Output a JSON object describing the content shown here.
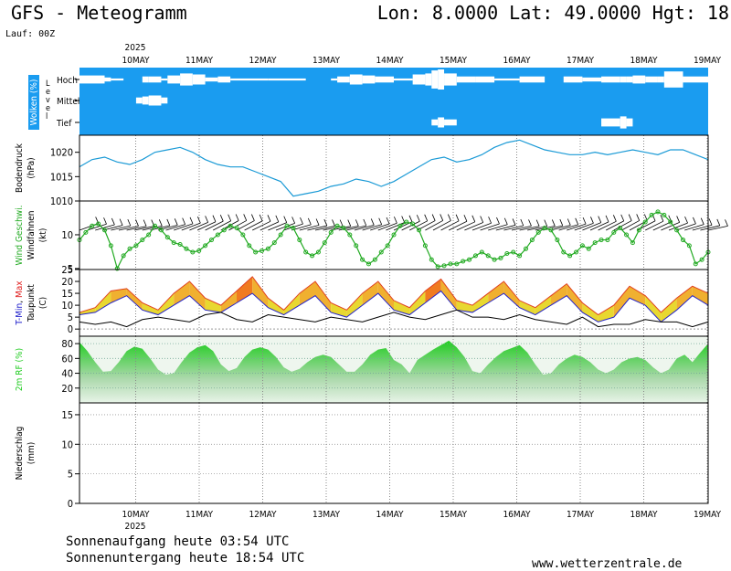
{
  "header": {
    "title": "GFS - Meteogramm",
    "coords": "Lon: 8.0000  Lat: 49.0000  Hgt: 18",
    "lauf": "Lauf: 00Z"
  },
  "footer": {
    "sunrise": "Sonnenaufgang heute 03:54 UTC",
    "sunset": "Sonnenuntergang heute 18:54 UTC",
    "site": "www.wetterzentrale.de"
  },
  "colors": {
    "cloud_bg": "#1a9cf0",
    "pressure": "#1a9ad6",
    "wind": "#22aa22",
    "tmin": "#2222cc",
    "tmax": "#e02020",
    "rh": "#22cc22"
  },
  "chart_data": [
    {
      "id": "x-axis",
      "type": "table",
      "year": "2025",
      "categories": [
        "10MAY",
        "11MAY",
        "12MAY",
        "13MAY",
        "14MAY",
        "15MAY",
        "16MAY",
        "17MAY",
        "18MAY",
        "19MAY"
      ]
    },
    {
      "id": "clouds",
      "type": "heatmap",
      "ylabel": "Wolken (%)",
      "level_axis": "L e v e l",
      "levels": [
        "Hoch",
        "Mittel",
        "Tief"
      ],
      "t": [
        0,
        0.4,
        0.5,
        0.7,
        0.9,
        1.0,
        1.1,
        1.3,
        1.4,
        1.6,
        1.8,
        2.0,
        2.2,
        2.4,
        3.0,
        3.6,
        4.0,
        4.1,
        4.3,
        4.5,
        4.7,
        5.0,
        5.3,
        5.5,
        5.6,
        5.7,
        5.8,
        6.0,
        6.3,
        6.6,
        7.0,
        7.4,
        7.7,
        8.0,
        8.3,
        8.6,
        8.7,
        8.8,
        9.0,
        9.2,
        9.3,
        9.6,
        10.0
      ],
      "hoch": [
        0.4,
        0.2,
        0.1,
        0.0,
        0.0,
        0.3,
        0.3,
        0.1,
        0.4,
        0.6,
        0.5,
        0.2,
        0.3,
        0.1,
        0.1,
        0.0,
        0.1,
        0.3,
        0.5,
        0.4,
        0.3,
        0.1,
        0.5,
        0.6,
        0.9,
        1.0,
        0.6,
        0.3,
        0.3,
        0.1,
        0.3,
        0.0,
        0.3,
        0.2,
        0.3,
        0.3,
        0.3,
        0.4,
        0.3,
        0.3,
        0.8,
        0.3,
        0.1
      ],
      "mittel": [
        0,
        0,
        0,
        0,
        0.3,
        0.4,
        0.5,
        0.3,
        0,
        0,
        0,
        0,
        0,
        0,
        0,
        0,
        0,
        0,
        0,
        0,
        0,
        0,
        0,
        0,
        0,
        0,
        0,
        0,
        0,
        0,
        0,
        0,
        0,
        0,
        0,
        0,
        0,
        0,
        0,
        0,
        0,
        0,
        0
      ],
      "tief": [
        0,
        0,
        0,
        0,
        0,
        0,
        0,
        0,
        0,
        0,
        0,
        0,
        0,
        0,
        0,
        0,
        0,
        0,
        0,
        0,
        0,
        0,
        0,
        0,
        0.3,
        0.5,
        0.3,
        0,
        0,
        0,
        0,
        0,
        0,
        0,
        0.4,
        0.6,
        0.4,
        0,
        0,
        0,
        0,
        0,
        0
      ]
    },
    {
      "id": "pressure",
      "type": "line",
      "ylabel": "Bodendruck",
      "unit": "(hPa)",
      "ylim": [
        1010,
        1023.5
      ],
      "yticks": [
        1010,
        1015,
        1020
      ],
      "x": [
        0,
        0.2,
        0.4,
        0.6,
        0.8,
        1.0,
        1.2,
        1.4,
        1.6,
        1.8,
        2.0,
        2.2,
        2.4,
        2.6,
        2.8,
        3.0,
        3.2,
        3.4,
        3.6,
        3.8,
        4.0,
        4.2,
        4.4,
        4.6,
        4.8,
        5.0,
        5.2,
        5.4,
        5.6,
        5.8,
        6.0,
        6.2,
        6.4,
        6.6,
        6.8,
        7.0,
        7.2,
        7.4,
        7.6,
        7.8,
        8.0,
        8.2,
        8.4,
        8.6,
        8.8,
        9.0,
        9.2,
        9.4,
        9.6,
        9.8,
        10.0
      ],
      "values": [
        1017,
        1018.5,
        1019,
        1018,
        1017.5,
        1018.5,
        1020,
        1020.5,
        1021,
        1020,
        1018.5,
        1017.5,
        1017,
        1017,
        1016,
        1015,
        1014,
        1011,
        1011.5,
        1012,
        1013,
        1013.5,
        1014.5,
        1014,
        1013,
        1014,
        1015.5,
        1017,
        1018.5,
        1019,
        1018,
        1018.5,
        1019.5,
        1021,
        1022,
        1022.5,
        1021.5,
        1020.5,
        1020,
        1019.5,
        1019.5,
        1020,
        1019.5,
        1020,
        1020.5,
        1020,
        1019.5,
        1020.5,
        1020.5,
        1019.5,
        1018.5
      ]
    },
    {
      "id": "wind",
      "type": "line",
      "ylabel": "Wind Geschwi.",
      "barbs_label": "Windfahnen",
      "unit": "(kt)",
      "log": true,
      "ylim": [
        4.9,
        20
      ],
      "yticks": [
        5,
        10
      ],
      "x": [
        0,
        0.1,
        0.2,
        0.3,
        0.4,
        0.5,
        0.6,
        0.7,
        0.8,
        0.9,
        1.0,
        1.1,
        1.2,
        1.3,
        1.4,
        1.5,
        1.6,
        1.7,
        1.8,
        1.9,
        2.0,
        2.1,
        2.2,
        2.3,
        2.4,
        2.5,
        2.6,
        2.7,
        2.8,
        2.9,
        3.0,
        3.1,
        3.2,
        3.3,
        3.4,
        3.5,
        3.6,
        3.7,
        3.8,
        3.9,
        4.0,
        4.1,
        4.2,
        4.3,
        4.4,
        4.5,
        4.6,
        4.7,
        4.8,
        4.9,
        5.0,
        5.1,
        5.2,
        5.3,
        5.4,
        5.5,
        5.6,
        5.7,
        5.8,
        5.9,
        6.0,
        6.1,
        6.2,
        6.3,
        6.4,
        6.5,
        6.6,
        6.7,
        6.8,
        6.9,
        7.0,
        7.1,
        7.2,
        7.3,
        7.4,
        7.5,
        7.6,
        7.7,
        7.8,
        7.9,
        8.0,
        8.1,
        8.2,
        8.3,
        8.4,
        8.5,
        8.6,
        8.7,
        8.8,
        8.9,
        9.0,
        9.1,
        9.2,
        9.3,
        9.4,
        9.5,
        9.6,
        9.7,
        9.8,
        9.9,
        10.0
      ],
      "values": [
        9,
        10.5,
        12,
        12.5,
        11,
        8,
        5,
        6.5,
        7.5,
        8,
        9,
        10,
        12,
        11,
        9.5,
        8.5,
        8.2,
        7.5,
        7,
        7.2,
        8,
        9,
        10,
        11,
        12,
        11.5,
        10,
        8,
        7,
        7.2,
        7.5,
        8.5,
        10,
        12,
        11.5,
        9,
        7,
        6.5,
        7,
        8.5,
        10.5,
        12,
        11.5,
        10,
        8,
        6,
        5.5,
        6,
        7,
        8,
        10,
        12,
        13,
        12.5,
        11,
        8,
        6,
        5.2,
        5.3,
        5.5,
        5.5,
        5.8,
        6,
        6.5,
        7,
        6.5,
        6,
        6.2,
        6.8,
        7,
        6.5,
        7.5,
        9,
        10.5,
        11.5,
        11,
        9,
        7,
        6.5,
        7,
        8,
        7.5,
        8.5,
        9,
        9,
        10.5,
        11.5,
        10,
        8.5,
        11,
        13,
        15,
        16,
        15,
        13,
        11,
        9,
        8,
        5.5,
        6,
        7
      ]
    },
    {
      "id": "temperature",
      "type": "area",
      "ylabel": "T-Min, Max",
      "ylabel2": "Taupunkt",
      "unit": "(C)",
      "ylim": [
        -3,
        25
      ],
      "yticks": [
        0,
        5,
        10,
        15,
        20,
        25
      ],
      "x": [
        0,
        0.25,
        0.5,
        0.75,
        1.0,
        1.25,
        1.5,
        1.75,
        2.0,
        2.25,
        2.5,
        2.75,
        3.0,
        3.25,
        3.5,
        3.75,
        4.0,
        4.25,
        4.5,
        4.75,
        5.0,
        5.25,
        5.5,
        5.75,
        6.0,
        6.25,
        6.5,
        6.75,
        7.0,
        7.25,
        7.5,
        7.75,
        8.0,
        8.25,
        8.5,
        8.75,
        9.0,
        9.25,
        9.5,
        9.75,
        10.0
      ],
      "series": [
        {
          "name": "T-Min",
          "values": [
            6,
            7,
            11,
            14,
            8,
            6,
            10,
            14,
            8,
            7,
            11,
            15,
            9,
            6,
            10,
            14,
            7,
            5,
            10,
            15,
            8,
            6,
            11,
            16,
            8,
            7,
            11,
            15,
            9,
            6,
            10,
            14,
            7,
            3,
            5,
            13,
            10,
            3,
            8,
            14,
            10
          ]
        },
        {
          "name": "T-Max",
          "values": [
            7,
            9,
            16,
            17,
            11,
            8,
            15,
            20,
            13,
            10,
            16,
            22,
            13,
            8,
            15,
            20,
            11,
            8,
            15,
            20,
            12,
            9,
            16,
            21,
            12,
            10,
            15,
            20,
            12,
            9,
            14,
            19,
            11,
            6,
            10,
            18,
            14,
            7,
            13,
            18,
            15
          ]
        },
        {
          "name": "Taupunkt",
          "values": [
            3,
            2,
            3,
            1,
            4,
            5,
            4,
            3,
            6,
            7,
            4,
            3,
            6,
            5,
            4,
            3,
            5,
            4,
            3,
            5,
            7,
            5,
            4,
            6,
            8,
            5,
            5,
            4,
            6,
            4,
            3,
            2,
            5,
            1,
            2,
            2,
            4,
            3,
            3,
            1,
            3
          ]
        }
      ]
    },
    {
      "id": "humidity",
      "type": "area",
      "ylabel": "2m RF (%)",
      "ylim": [
        0,
        90
      ],
      "yticks": [
        20,
        40,
        60,
        80
      ],
      "x": [
        0,
        0.125,
        0.25,
        0.375,
        0.5,
        0.625,
        0.75,
        0.875,
        1.0,
        1.125,
        1.25,
        1.375,
        1.5,
        1.625,
        1.75,
        1.875,
        2.0,
        2.125,
        2.25,
        2.375,
        2.5,
        2.625,
        2.75,
        2.875,
        3.0,
        3.125,
        3.25,
        3.375,
        3.5,
        3.625,
        3.75,
        3.875,
        4.0,
        4.125,
        4.25,
        4.375,
        4.5,
        4.625,
        4.75,
        4.875,
        5.0,
        5.125,
        5.25,
        5.375,
        5.5,
        5.625,
        5.75,
        5.875,
        6.0,
        6.125,
        6.25,
        6.375,
        6.5,
        6.625,
        6.75,
        6.875,
        7.0,
        7.125,
        7.25,
        7.375,
        7.5,
        7.625,
        7.75,
        7.875,
        8.0,
        8.125,
        8.25,
        8.375,
        8.5,
        8.625,
        8.75,
        8.875,
        9.0,
        9.125,
        9.25,
        9.375,
        9.5,
        9.625,
        9.75,
        9.875,
        10.0
      ],
      "values": [
        82,
        70,
        55,
        42,
        43,
        55,
        70,
        76,
        73,
        60,
        45,
        38,
        40,
        55,
        68,
        75,
        78,
        70,
        52,
        43,
        47,
        62,
        72,
        75,
        72,
        62,
        48,
        42,
        46,
        55,
        62,
        65,
        62,
        52,
        42,
        42,
        52,
        65,
        72,
        74,
        58,
        52,
        40,
        58,
        65,
        72,
        78,
        84,
        75,
        62,
        43,
        40,
        52,
        62,
        70,
        74,
        78,
        68,
        52,
        38,
        40,
        52,
        60,
        65,
        62,
        55,
        45,
        40,
        45,
        55,
        60,
        62,
        58,
        48,
        40,
        45,
        60,
        65,
        55,
        68,
        80
      ]
    },
    {
      "id": "precip",
      "type": "bar",
      "ylabel": "Niederschlag",
      "unit": "(mm)",
      "ylim": [
        0,
        17
      ],
      "yticks": [
        0,
        5,
        10,
        15
      ],
      "values": []
    }
  ]
}
